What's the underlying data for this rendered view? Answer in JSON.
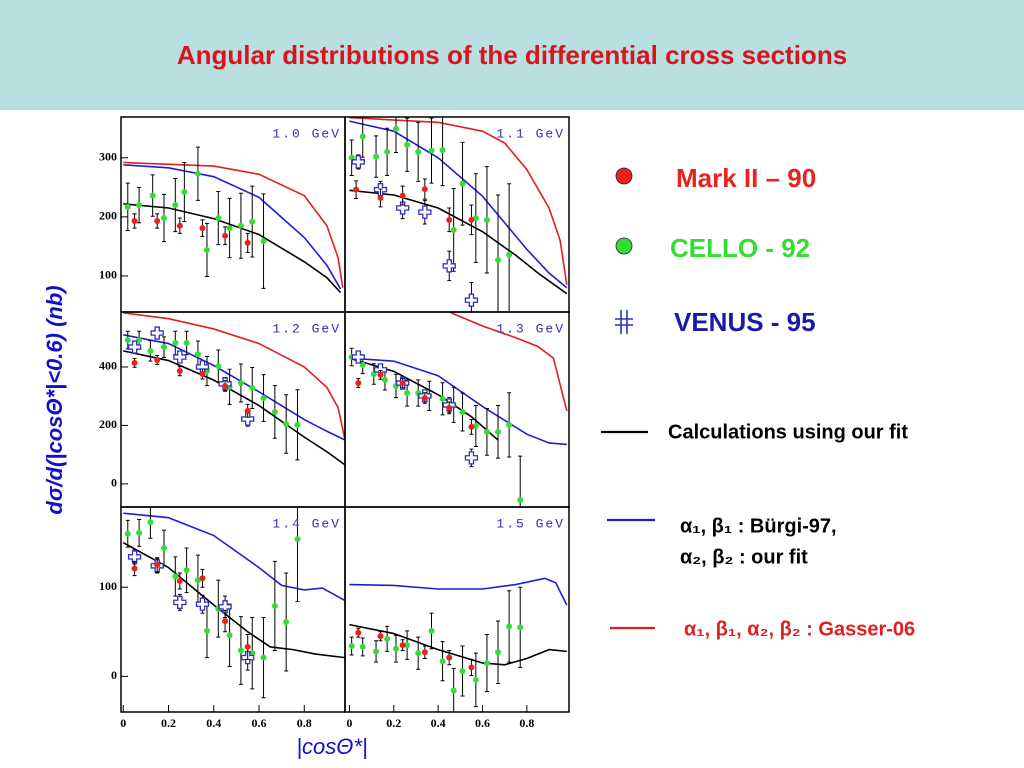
{
  "title": "Angular distributions of the differential cross sections",
  "y_label": "dσ/d(|cosΘ*|<0.6) (nb)",
  "x_label": "|cosΘ*|",
  "legend": [
    {
      "name": "Mark II – 90",
      "color": "#e8231c",
      "marker": "dot"
    },
    {
      "name": "CELLO - 92",
      "color": "#33dd33",
      "marker": "dot"
    },
    {
      "name": "VENUS - 95",
      "color": "#3030c0",
      "marker": "cross"
    },
    {
      "name": "Calculations using our fit",
      "color": "#000000",
      "marker": "line"
    },
    {
      "name": [
        "α₁, β₁ : Bürgi-97,",
        "α₂, β₂ : our fit"
      ],
      "color": "#1f1fd0",
      "marker": "line"
    },
    {
      "name": "α₁, β₁, α₂, β₂ : Gasser-06",
      "color": "#e02020",
      "marker": "line"
    }
  ],
  "chart_data": [
    {
      "type": "scatter",
      "label": "1.0 GeV",
      "xlim": [
        -0.01,
        0.98
      ],
      "ylim": [
        39,
        369
      ],
      "yticks": [
        100,
        200,
        300
      ],
      "series": [
        {
          "color": "#e02020",
          "x": [
            0,
            0.4,
            0.6,
            0.8,
            0.9,
            0.95,
            0.97
          ],
          "values": [
            292,
            286,
            272,
            236,
            185,
            130,
            80
          ]
        },
        {
          "color": "#1f1fd0",
          "x": [
            0,
            0.2,
            0.4,
            0.6,
            0.8,
            0.9,
            0.96
          ],
          "values": [
            288,
            283,
            268,
            233,
            165,
            118,
            78
          ]
        },
        {
          "color": "#000000",
          "x": [
            0,
            0.2,
            0.4,
            0.6,
            0.8,
            0.9,
            0.96
          ],
          "values": [
            222,
            215,
            197,
            170,
            124,
            97,
            72
          ]
        },
        {
          "color": "#33dd33",
          "marker": "dot",
          "x": [
            0.02,
            0.07,
            0.13,
            0.18,
            0.23,
            0.27,
            0.33,
            0.37,
            0.42,
            0.47,
            0.52,
            0.57,
            0.62
          ],
          "values": [
            217,
            220,
            236,
            198,
            220,
            242,
            273,
            144,
            198,
            181,
            185,
            192,
            159
          ],
          "errors": [
            40,
            30,
            35,
            40,
            45,
            50,
            45,
            45,
            45,
            50,
            55,
            60,
            80
          ]
        },
        {
          "color": "#e8231c",
          "marker": "dot",
          "x": [
            0.05,
            0.15,
            0.25,
            0.35,
            0.45,
            0.55
          ],
          "values": [
            193,
            193,
            185,
            181,
            168,
            156
          ],
          "errors": [
            12,
            12,
            13,
            14,
            15,
            16
          ]
        }
      ]
    },
    {
      "type": "scatter",
      "label": "1.1 GeV",
      "xlim": [
        -0.02,
        0.99
      ],
      "ylim": [
        39,
        369
      ],
      "series": [
        {
          "color": "#e02020",
          "x": [
            0,
            0.4,
            0.6,
            0.7,
            0.8,
            0.9,
            0.95,
            0.98
          ],
          "values": [
            368,
            360,
            345,
            325,
            280,
            215,
            160,
            85
          ]
        },
        {
          "color": "#1f1fd0",
          "x": [
            0,
            0.2,
            0.4,
            0.6,
            0.8,
            0.9,
            0.98
          ],
          "values": [
            362,
            345,
            300,
            235,
            145,
            105,
            80
          ]
        },
        {
          "color": "#000000",
          "x": [
            0,
            0.2,
            0.4,
            0.6,
            0.75,
            0.85,
            0.98
          ],
          "values": [
            245,
            237,
            215,
            175,
            135,
            105,
            70
          ]
        },
        {
          "color": "#33dd33",
          "marker": "dot",
          "x": [
            0.01,
            0.06,
            0.12,
            0.17,
            0.21,
            0.26,
            0.31,
            0.37,
            0.42,
            0.47,
            0.51,
            0.57,
            0.62,
            0.67,
            0.72
          ],
          "values": [
            300,
            336,
            302,
            310,
            349,
            322,
            310,
            312,
            313,
            178,
            256,
            198,
            195,
            127,
            136
          ],
          "errors": [
            30,
            35,
            35,
            40,
            40,
            45,
            50,
            55,
            60,
            70,
            70,
            75,
            90,
            110,
            120
          ]
        },
        {
          "color": "#3030c0",
          "marker": "cross",
          "x": [
            0.04,
            0.14,
            0.24,
            0.34,
            0.45,
            0.55
          ],
          "values": [
            293,
            246,
            215,
            208,
            117,
            59
          ],
          "errors": [
            12,
            14,
            18,
            20,
            25,
            30
          ]
        },
        {
          "color": "#e8231c",
          "marker": "dot",
          "x": [
            0.03,
            0.14,
            0.24,
            0.34,
            0.45,
            0.55
          ],
          "values": [
            246,
            232,
            236,
            247,
            195,
            195
          ],
          "errors": [
            15,
            15,
            16,
            17,
            20,
            25
          ]
        }
      ]
    },
    {
      "type": "scatter",
      "label": "1.2 GeV",
      "xlim": [
        -0.01,
        0.98
      ],
      "ylim": [
        -79,
        588
      ],
      "yticks": [
        0,
        200,
        400
      ],
      "series": [
        {
          "color": "#e02020",
          "x": [
            0,
            0.2,
            0.4,
            0.6,
            0.8,
            0.9,
            0.95,
            0.98
          ],
          "values": [
            585,
            565,
            530,
            480,
            400,
            330,
            260,
            150
          ]
        },
        {
          "color": "#1f1fd0",
          "x": [
            0,
            0.2,
            0.4,
            0.6,
            0.8,
            0.9,
            0.98
          ],
          "values": [
            510,
            480,
            405,
            315,
            220,
            180,
            150
          ]
        },
        {
          "color": "#000000",
          "x": [
            0,
            0.2,
            0.4,
            0.6,
            0.8,
            0.9,
            0.98
          ],
          "values": [
            455,
            422,
            355,
            268,
            160,
            110,
            65
          ]
        },
        {
          "color": "#33dd33",
          "marker": "dot",
          "x": [
            0.02,
            0.07,
            0.12,
            0.18,
            0.23,
            0.28,
            0.33,
            0.37,
            0.42,
            0.47,
            0.52,
            0.57,
            0.62,
            0.67,
            0.72,
            0.77
          ],
          "values": [
            492,
            492,
            455,
            468,
            482,
            482,
            444,
            386,
            403,
            332,
            345,
            328,
            294,
            246,
            205,
            202
          ],
          "errors": [
            30,
            30,
            35,
            35,
            40,
            40,
            45,
            50,
            55,
            60,
            65,
            70,
            80,
            90,
            100,
            120
          ]
        },
        {
          "color": "#3030c0",
          "marker": "cross",
          "x": [
            0.05,
            0.15,
            0.25,
            0.35,
            0.45,
            0.55
          ],
          "values": [
            468,
            516,
            434,
            400,
            342,
            222
          ],
          "errors": [
            15,
            15,
            18,
            20,
            22,
            25
          ]
        },
        {
          "color": "#e8231c",
          "marker": "dot",
          "x": [
            0.05,
            0.15,
            0.25,
            0.35,
            0.45,
            0.55
          ],
          "values": [
            414,
            424,
            386,
            376,
            335,
            250
          ],
          "errors": [
            15,
            15,
            16,
            17,
            18,
            22
          ]
        }
      ]
    },
    {
      "type": "scatter",
      "label": "1.3 GeV",
      "xlim": [
        -0.02,
        0.99
      ],
      "ylim": [
        -79,
        588
      ],
      "series": [
        {
          "color": "#e02020",
          "x": [
            0.45,
            0.6,
            0.75,
            0.85,
            0.92,
            0.98
          ],
          "values": [
            588,
            540,
            500,
            470,
            430,
            250
          ]
        },
        {
          "color": "#1f1fd0",
          "x": [
            0,
            0.2,
            0.4,
            0.6,
            0.8,
            0.9,
            0.98
          ],
          "values": [
            430,
            420,
            370,
            265,
            170,
            140,
            135
          ]
        },
        {
          "color": "#000000",
          "x": [
            0,
            0.2,
            0.4,
            0.55,
            0.67
          ],
          "values": [
            430,
            385,
            305,
            230,
            150
          ]
        },
        {
          "color": "#33dd33",
          "marker": "dot",
          "x": [
            0.01,
            0.06,
            0.11,
            0.16,
            0.21,
            0.26,
            0.31,
            0.36,
            0.42,
            0.47,
            0.51,
            0.57,
            0.62,
            0.67,
            0.72,
            0.77
          ],
          "values": [
            434,
            407,
            376,
            356,
            335,
            311,
            311,
            301,
            291,
            270,
            246,
            198,
            178,
            178,
            202,
            -55
          ],
          "errors": [
            30,
            30,
            35,
            35,
            40,
            45,
            45,
            50,
            55,
            60,
            65,
            70,
            80,
            90,
            110,
            150
          ]
        },
        {
          "color": "#3030c0",
          "marker": "cross",
          "x": [
            0.04,
            0.14,
            0.24,
            0.34,
            0.45,
            0.55
          ],
          "values": [
            434,
            390,
            345,
            301,
            270,
            89
          ],
          "errors": [
            15,
            15,
            18,
            20,
            25,
            30
          ]
        },
        {
          "color": "#e8231c",
          "marker": "dot",
          "x": [
            0.04,
            0.14,
            0.24,
            0.34,
            0.45,
            0.55
          ],
          "values": [
            345,
            373,
            345,
            294,
            260,
            195
          ],
          "errors": [
            15,
            15,
            16,
            18,
            20,
            25
          ]
        }
      ]
    },
    {
      "type": "scatter",
      "label": "1.4 GeV",
      "xlim": [
        -0.01,
        0.98
      ],
      "ylim": [
        -40,
        190
      ],
      "yticks": [
        0,
        100
      ],
      "xticks": [
        0,
        0.2,
        0.4,
        0.6,
        0.8
      ],
      "series": [
        {
          "color": "#1f1fd0",
          "x": [
            0,
            0.2,
            0.4,
            0.6,
            0.7,
            0.8,
            0.88,
            0.98
          ],
          "values": [
            183,
            178,
            158,
            122,
            102,
            97,
            99,
            85
          ]
        },
        {
          "color": "#000000",
          "x": [
            0,
            0.2,
            0.4,
            0.55,
            0.65,
            0.75,
            0.85,
            0.98
          ],
          "values": [
            150,
            122,
            80,
            50,
            33,
            30,
            25,
            21
          ]
        },
        {
          "color": "#33dd33",
          "marker": "dot",
          "x": [
            0.02,
            0.07,
            0.12,
            0.18,
            0.23,
            0.28,
            0.33,
            0.37,
            0.42,
            0.47,
            0.52,
            0.57,
            0.62,
            0.67,
            0.72,
            0.77
          ],
          "values": [
            160,
            161,
            173,
            144,
            112,
            119,
            108,
            51,
            76,
            46,
            29,
            26,
            21,
            79,
            61,
            154
          ],
          "errors": [
            15,
            15,
            18,
            20,
            22,
            25,
            28,
            30,
            32,
            35,
            38,
            40,
            45,
            50,
            55,
            70
          ]
        },
        {
          "color": "#3030c0",
          "marker": "cross",
          "x": [
            0.05,
            0.15,
            0.25,
            0.35,
            0.45,
            0.55
          ],
          "values": [
            134,
            124,
            83,
            81,
            78,
            21
          ],
          "errors": [
            8,
            8,
            9,
            10,
            12,
            14
          ]
        },
        {
          "color": "#e8231c",
          "marker": "dot",
          "x": [
            0.05,
            0.15,
            0.25,
            0.35,
            0.45,
            0.55
          ],
          "values": [
            121,
            125,
            107,
            110,
            62,
            33
          ],
          "errors": [
            8,
            8,
            9,
            10,
            12,
            14
          ]
        }
      ]
    },
    {
      "type": "scatter",
      "label": "1.5 GeV",
      "xlim": [
        -0.02,
        0.99
      ],
      "ylim": [
        -40,
        190
      ],
      "xticks": [
        0,
        0.2,
        0.4,
        0.6,
        0.8
      ],
      "series": [
        {
          "color": "#1f1fd0",
          "x": [
            0,
            0.2,
            0.4,
            0.6,
            0.75,
            0.88,
            0.93,
            0.98
          ],
          "values": [
            103,
            102,
            98,
            98,
            103,
            110,
            105,
            80
          ]
        },
        {
          "color": "#000000",
          "x": [
            0,
            0.2,
            0.4,
            0.6,
            0.7,
            0.8,
            0.9,
            0.98
          ],
          "values": [
            58,
            48,
            30,
            15,
            13,
            20,
            30,
            28
          ]
        },
        {
          "color": "#33dd33",
          "marker": "dot",
          "x": [
            0.01,
            0.06,
            0.12,
            0.17,
            0.21,
            0.26,
            0.31,
            0.37,
            0.42,
            0.47,
            0.51,
            0.57,
            0.62,
            0.67,
            0.72,
            0.77
          ],
          "values": [
            34,
            33,
            28,
            42,
            31,
            35,
            26,
            51,
            17,
            -16,
            6,
            -4,
            15,
            27,
            56,
            55
          ],
          "errors": [
            10,
            10,
            12,
            14,
            15,
            16,
            18,
            20,
            22,
            25,
            28,
            30,
            32,
            35,
            40,
            45
          ]
        },
        {
          "color": "#e8231c",
          "marker": "dot",
          "x": [
            0.04,
            0.14,
            0.24,
            0.34,
            0.45,
            0.55
          ],
          "values": [
            49,
            45,
            35,
            27,
            21,
            10
          ],
          "errors": [
            5,
            5,
            6,
            7,
            8,
            9
          ]
        }
      ]
    }
  ]
}
